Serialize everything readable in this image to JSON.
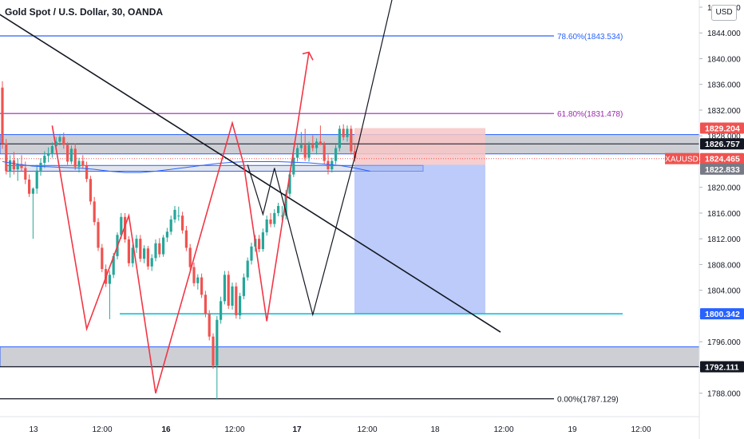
{
  "header": {
    "title": "Gold Spot / U.S. Dollar, 30, OANDA"
  },
  "axis": {
    "currency": "USD"
  },
  "chart_data": {
    "type": "candlestick",
    "title": "Gold Spot / U.S. Dollar, 30, OANDA",
    "ylim": [
      1785.0,
      1849.0
    ],
    "y_ticks": [
      1788.0,
      1792.0,
      1796.0,
      1800.0,
      1804.0,
      1808.0,
      1812.0,
      1816.0,
      1820.0,
      1824.0,
      1828.0,
      1832.0,
      1836.0,
      1840.0,
      1844.0,
      1848.0
    ],
    "x_ticks": [
      "13",
      "12:00",
      "16",
      "12:00",
      "17",
      "12:00",
      "18",
      "12:00",
      "19",
      "12:00"
    ],
    "x_bold_ticks": [
      "16",
      "17"
    ],
    "colors": {
      "up": "#26a69a",
      "down": "#ef5350",
      "ma": "#2962ff",
      "fib": "#2962ff",
      "fib618": "#9c27b0",
      "support": "#00bcd4"
    },
    "fib_levels": [
      {
        "label": "78.60%(1843.534)",
        "value": 1843.534
      },
      {
        "label": "61.80%(1831.478)",
        "value": 1831.478
      },
      {
        "label": "0.00%(1787.129)",
        "value": 1787.129
      }
    ],
    "price_labels": [
      {
        "text": "1829.204",
        "value": 1829.204,
        "bg": "#ef5350",
        "fg": "#ffffff"
      },
      {
        "text": "1826.757",
        "value": 1826.757,
        "bg": "#131722",
        "fg": "#ffffff"
      },
      {
        "text": "1824.465",
        "value": 1824.465,
        "bg": "#ef5350",
        "fg": "#ffffff",
        "sub": "09:04"
      },
      {
        "text": "1822.833",
        "value": 1822.833,
        "bg": "#787b86",
        "fg": "#ffffff"
      },
      {
        "text": "1800.342",
        "value": 1800.342,
        "bg": "#2962ff",
        "fg": "#ffffff"
      },
      {
        "text": "1792.111",
        "value": 1792.111,
        "bg": "#131722",
        "fg": "#ffffff"
      }
    ],
    "symbol_tag": "XAUUSD",
    "zones": [
      {
        "name": "supply-zone",
        "y1": 1828.2,
        "y2": 1825.2
      },
      {
        "name": "demand-zone",
        "y1": 1795.2,
        "y2": 1792.1
      }
    ],
    "position": {
      "entry": 1823.5,
      "stop": 1829.204,
      "target": 1800.342
    },
    "support_level": 1800.342,
    "ohlc": [
      [
        1835.5,
        1836.5,
        1826.0,
        1826.8
      ],
      [
        1826.8,
        1827.5,
        1822.0,
        1822.5
      ],
      [
        1822.5,
        1825.0,
        1821.5,
        1824.2
      ],
      [
        1824.2,
        1825.5,
        1822.0,
        1822.8
      ],
      [
        1822.8,
        1824.5,
        1821.0,
        1823.6
      ],
      [
        1823.6,
        1825.0,
        1822.5,
        1823.0
      ],
      [
        1823.0,
        1824.0,
        1820.5,
        1821.2
      ],
      [
        1821.2,
        1822.0,
        1818.5,
        1819.0
      ],
      [
        1819.0,
        1820.0,
        1812.0,
        1819.8
      ],
      [
        1819.8,
        1823.5,
        1819.0,
        1822.6
      ],
      [
        1822.6,
        1824.5,
        1821.8,
        1823.8
      ],
      [
        1823.8,
        1825.6,
        1823.0,
        1824.9
      ],
      [
        1824.9,
        1826.2,
        1823.9,
        1825.3
      ],
      [
        1825.3,
        1827.0,
        1824.6,
        1826.4
      ],
      [
        1826.4,
        1827.8,
        1825.8,
        1827.1
      ],
      [
        1827.1,
        1828.3,
        1826.5,
        1827.8
      ],
      [
        1827.8,
        1828.5,
        1826.0,
        1826.6
      ],
      [
        1826.6,
        1827.0,
        1823.5,
        1824.0
      ],
      [
        1824.0,
        1826.5,
        1823.6,
        1826.0
      ],
      [
        1826.0,
        1826.8,
        1822.7,
        1823.2
      ],
      [
        1823.2,
        1824.6,
        1822.3,
        1824.1
      ],
      [
        1824.1,
        1825.0,
        1822.9,
        1823.4
      ],
      [
        1823.4,
        1824.0,
        1820.8,
        1821.3
      ],
      [
        1821.3,
        1821.8,
        1817.3,
        1817.8
      ],
      [
        1817.8,
        1818.5,
        1814.1,
        1814.6
      ],
      [
        1814.6,
        1815.2,
        1810.1,
        1810.6
      ],
      [
        1810.6,
        1811.2,
        1806.8,
        1807.3
      ],
      [
        1807.3,
        1808.0,
        1804.5,
        1805.0
      ],
      [
        1805.0,
        1807.0,
        1799.5,
        1806.4
      ],
      [
        1806.4,
        1809.8,
        1805.9,
        1809.3
      ],
      [
        1809.3,
        1813.0,
        1808.8,
        1812.6
      ],
      [
        1812.6,
        1816.0,
        1812.0,
        1815.4
      ],
      [
        1815.4,
        1816.0,
        1811.4,
        1811.9
      ],
      [
        1811.9,
        1812.4,
        1807.7,
        1808.2
      ],
      [
        1808.2,
        1811.1,
        1807.6,
        1810.6
      ],
      [
        1810.6,
        1812.6,
        1809.8,
        1812.0
      ],
      [
        1812.0,
        1812.6,
        1808.4,
        1808.9
      ],
      [
        1808.9,
        1811.0,
        1808.2,
        1810.5
      ],
      [
        1810.5,
        1810.9,
        1807.2,
        1807.7
      ],
      [
        1807.7,
        1809.6,
        1807.0,
        1809.0
      ],
      [
        1809.0,
        1811.9,
        1808.5,
        1811.3
      ],
      [
        1811.3,
        1812.1,
        1809.1,
        1809.6
      ],
      [
        1809.6,
        1812.6,
        1809.2,
        1812.2
      ],
      [
        1812.2,
        1813.7,
        1811.5,
        1813.1
      ],
      [
        1813.1,
        1815.6,
        1812.6,
        1815.0
      ],
      [
        1815.0,
        1817.1,
        1814.5,
        1816.5
      ],
      [
        1815.5,
        1817.0,
        1814.8,
        1815.6
      ],
      [
        1815.6,
        1816.2,
        1812.8,
        1813.3
      ],
      [
        1813.3,
        1814.0,
        1810.1,
        1810.6
      ],
      [
        1810.6,
        1811.2,
        1807.1,
        1807.6
      ],
      [
        1807.6,
        1808.3,
        1804.6,
        1805.1
      ],
      [
        1805.1,
        1806.5,
        1804.1,
        1806.0
      ],
      [
        1806.0,
        1806.6,
        1802.8,
        1803.3
      ],
      [
        1803.3,
        1803.9,
        1799.8,
        1800.3
      ],
      [
        1800.3,
        1800.9,
        1796.2,
        1796.8
      ],
      [
        1796.8,
        1797.3,
        1791.8,
        1792.3
      ],
      [
        1792.3,
        1800.0,
        1787.0,
        1799.4
      ],
      [
        1799.4,
        1803.0,
        1798.8,
        1802.3
      ],
      [
        1802.3,
        1807.0,
        1801.8,
        1806.4
      ],
      [
        1806.4,
        1807.0,
        1801.1,
        1801.6
      ],
      [
        1801.6,
        1805.2,
        1801.0,
        1804.6
      ],
      [
        1804.6,
        1805.2,
        1799.6,
        1800.1
      ],
      [
        1800.1,
        1803.6,
        1799.5,
        1803.1
      ],
      [
        1803.1,
        1806.6,
        1802.6,
        1806.0
      ],
      [
        1806.0,
        1809.1,
        1805.5,
        1808.6
      ],
      [
        1808.6,
        1811.4,
        1808.0,
        1810.8
      ],
      [
        1810.8,
        1812.6,
        1810.0,
        1812.0
      ],
      [
        1812.0,
        1812.6,
        1809.9,
        1810.4
      ],
      [
        1810.4,
        1813.6,
        1810.0,
        1813.0
      ],
      [
        1813.0,
        1815.6,
        1812.5,
        1815.0
      ],
      [
        1815.0,
        1816.0,
        1813.8,
        1814.3
      ],
      [
        1814.3,
        1816.6,
        1813.8,
        1816.0
      ],
      [
        1816.0,
        1817.6,
        1815.5,
        1817.1
      ],
      [
        1815.5,
        1817.1,
        1814.8,
        1815.6
      ],
      [
        1815.6,
        1819.6,
        1815.0,
        1819.0
      ],
      [
        1819.0,
        1822.6,
        1818.5,
        1822.0
      ],
      [
        1822.0,
        1825.1,
        1821.6,
        1824.6
      ],
      [
        1824.6,
        1826.6,
        1824.0,
        1826.1
      ],
      [
        1826.1,
        1828.6,
        1825.5,
        1826.6
      ],
      [
        1826.6,
        1829.1,
        1824.1,
        1824.6
      ],
      [
        1824.6,
        1827.1,
        1824.0,
        1826.6
      ],
      [
        1826.6,
        1828.1,
        1825.6,
        1826.1
      ],
      [
        1826.1,
        1827.6,
        1825.1,
        1827.1
      ],
      [
        1827.1,
        1829.6,
        1826.6,
        1826.6
      ],
      [
        1826.6,
        1827.1,
        1823.6,
        1824.1
      ],
      [
        1824.1,
        1825.1,
        1822.0,
        1822.8
      ],
      [
        1822.8,
        1824.6,
        1822.3,
        1824.1
      ],
      [
        1824.1,
        1826.6,
        1823.6,
        1826.1
      ],
      [
        1826.1,
        1829.6,
        1825.6,
        1829.1
      ],
      [
        1829.1,
        1829.8,
        1827.3,
        1827.8
      ],
      [
        1827.8,
        1829.6,
        1827.1,
        1829.1
      ],
      [
        1829.1,
        1829.6,
        1825.1,
        1825.6
      ],
      [
        1825.6,
        1826.6,
        1824.0,
        1824.5
      ]
    ],
    "ma": [
      1824.0,
      1823.6,
      1823.3,
      1823.2,
      1823.1,
      1823.0,
      1822.8,
      1822.5,
      1822.3,
      1822.3,
      1822.5,
      1822.8,
      1823.1,
      1823.4,
      1823.7,
      1823.9,
      1824.0,
      1824.0,
      1824.0,
      1823.9,
      1823.8,
      1823.6,
      1823.4,
      1823.0,
      1822.5
    ],
    "black_trendline": [
      [
        -5,
        1848.5
      ],
      [
        130,
        1797.5
      ]
    ],
    "red_path": [
      [
        13,
        1829.6
      ],
      [
        22,
        1798.0
      ],
      [
        33,
        1815.6
      ],
      [
        40,
        1788.0
      ],
      [
        60,
        1830.0
      ],
      [
        63,
        1823.5
      ],
      [
        69,
        1799.2
      ],
      [
        80,
        1841.0
      ]
    ],
    "red_arrow_tip": [
      81.5,
      1839.8
    ],
    "black_path": [
      [
        64,
        1823.5
      ],
      [
        68,
        1815.8
      ],
      [
        71,
        1823.0
      ],
      [
        81,
        1800.2
      ],
      [
        93,
        1827.0
      ],
      [
        102,
        1850.0
      ]
    ]
  }
}
